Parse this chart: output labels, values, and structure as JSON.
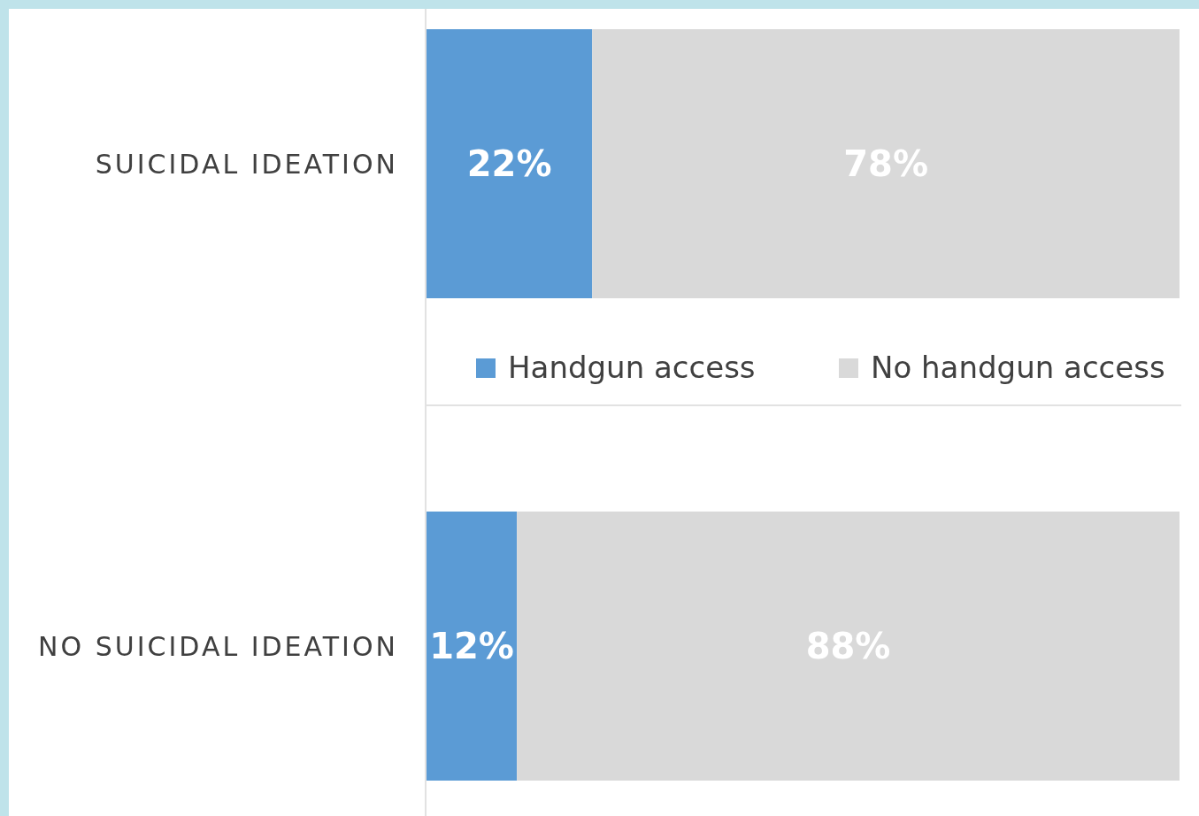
{
  "chart_data": {
    "type": "bar",
    "orientation": "horizontal",
    "stacked": true,
    "categories": [
      "SUICIDAL IDEATION",
      "NO SUICIDAL IDEATION"
    ],
    "series": [
      {
        "name": "Handgun access",
        "color": "#5b9bd5",
        "values": [
          22,
          12
        ],
        "value_labels": [
          "22%",
          "12%"
        ]
      },
      {
        "name": "No handgun access",
        "color": "#d9d9d9",
        "values": [
          78,
          88
        ],
        "value_labels": [
          "78%",
          "88%"
        ]
      }
    ],
    "xlim": [
      0,
      100
    ],
    "tick_labels": "y",
    "legend": "center",
    "grid": false
  }
}
